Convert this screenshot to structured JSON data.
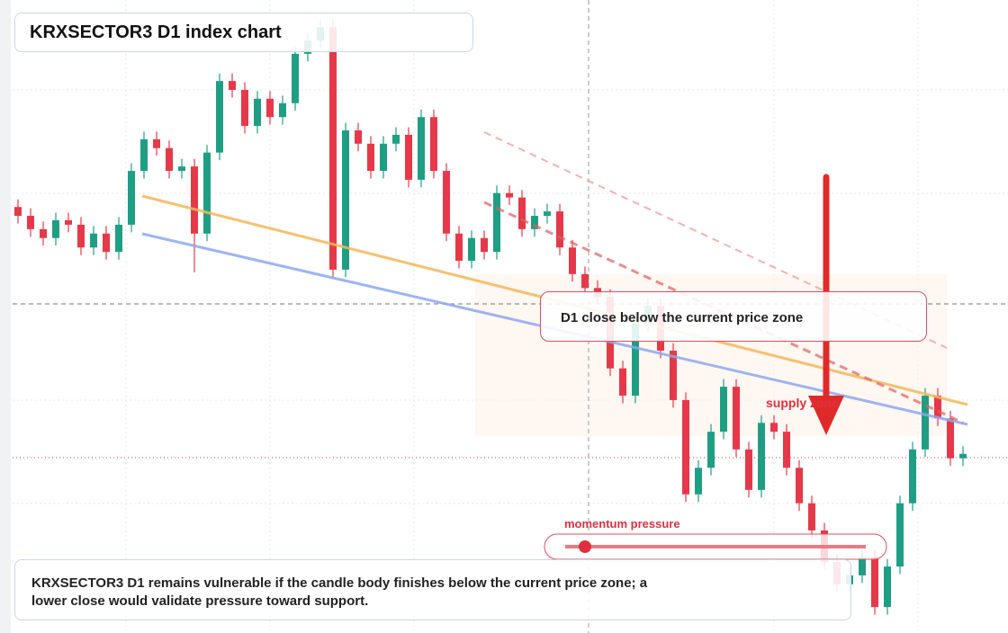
{
  "chart_data": {
    "type": "candlestick",
    "title": "KRXSECTOR3 D1 index chart",
    "callout": "D1 close below the current price zone",
    "zone_label": "supply zone",
    "momentum_label": "momentum pressure",
    "note": "KRXSECTOR3 D1 remains vulnerable if the candle body finishes below the current price zone; a lower close would validate pressure toward support.",
    "ylim": [
      0,
      100
    ],
    "up_color": "#1f9e84",
    "down_color": "#e5394a",
    "open": [
      67.3,
      65.9,
      63.8,
      62.4,
      65.2,
      64.5,
      60.9,
      63.1,
      60.2,
      64.5,
      73.0,
      78.0,
      76.6,
      73.0,
      73.7,
      63.1,
      75.9,
      87.2,
      85.8,
      80.1,
      84.4,
      81.5,
      83.7,
      91.5,
      93.6,
      95.7,
      57.4,
      79.4,
      77.3,
      73.0,
      77.3,
      78.7,
      71.6,
      81.5,
      73.0,
      63.1,
      58.8,
      62.4,
      60.2,
      69.5,
      68.8,
      63.8,
      65.9,
      66.6,
      60.9,
      56.7,
      54.5,
      53.1,
      41.8,
      37.5,
      48.9,
      51.7,
      44.6,
      36.8,
      21.9,
      26.1,
      31.8,
      38.9,
      29.0,
      22.6,
      33.2,
      31.8,
      26.1,
      20.5,
      16.2,
      11.2,
      7.7,
      9.1,
      11.9,
      4.1,
      10.5,
      20.5,
      29.0,
      37.5,
      33.9,
      27.6
    ],
    "high": [
      68.5,
      67.1,
      65.0,
      66.4,
      66.4,
      65.7,
      64.3,
      64.3,
      65.7,
      74.2,
      79.2,
      79.2,
      77.8,
      74.9,
      74.9,
      77.1,
      88.4,
      88.4,
      87.0,
      85.6,
      85.6,
      84.9,
      92.7,
      94.8,
      96.9,
      96.9,
      80.6,
      80.6,
      78.5,
      78.5,
      79.9,
      79.9,
      82.7,
      82.7,
      74.2,
      64.3,
      63.6,
      63.6,
      70.7,
      70.7,
      70.0,
      67.1,
      67.8,
      67.8,
      62.1,
      57.9,
      55.7,
      54.3,
      43.0,
      50.1,
      52.9,
      52.9,
      45.8,
      38.0,
      27.3,
      33.0,
      40.1,
      40.1,
      30.2,
      34.4,
      34.4,
      33.0,
      27.3,
      21.7,
      17.4,
      12.4,
      10.3,
      13.1,
      13.1,
      11.7,
      21.7,
      30.2,
      38.7,
      38.7,
      35.1,
      29.5
    ],
    "low": [
      64.7,
      62.6,
      61.2,
      61.2,
      63.3,
      59.7,
      59.7,
      59.0,
      59.0,
      63.3,
      71.8,
      75.4,
      71.8,
      71.8,
      57.0,
      61.9,
      74.7,
      84.6,
      78.9,
      78.9,
      80.3,
      80.3,
      82.5,
      90.3,
      92.4,
      56.2,
      56.2,
      76.1,
      71.8,
      71.8,
      76.1,
      70.4,
      70.4,
      71.8,
      61.9,
      57.6,
      57.6,
      59.0,
      59.0,
      67.6,
      62.6,
      62.6,
      64.7,
      59.7,
      55.5,
      53.3,
      51.9,
      40.6,
      36.3,
      36.3,
      47.7,
      43.4,
      35.6,
      20.7,
      20.7,
      24.9,
      30.6,
      27.8,
      21.4,
      21.4,
      30.6,
      24.9,
      19.3,
      15.0,
      10.0,
      6.5,
      6.5,
      7.9,
      2.9,
      2.9,
      9.3,
      19.3,
      27.8,
      32.7,
      26.4,
      26.4
    ],
    "close": [
      65.9,
      63.8,
      62.4,
      65.2,
      64.5,
      60.9,
      63.1,
      60.2,
      64.5,
      73.0,
      78.0,
      76.6,
      73.0,
      73.7,
      63.1,
      75.9,
      87.2,
      85.8,
      80.1,
      84.4,
      81.5,
      83.7,
      91.5,
      93.6,
      95.7,
      57.4,
      79.4,
      77.3,
      73.0,
      77.3,
      78.7,
      71.6,
      81.5,
      73.0,
      63.1,
      58.8,
      62.4,
      60.2,
      69.5,
      68.8,
      63.8,
      65.9,
      66.6,
      60.9,
      56.7,
      54.5,
      53.1,
      41.8,
      37.5,
      48.9,
      51.7,
      44.6,
      36.8,
      21.9,
      26.1,
      31.8,
      38.9,
      29.0,
      22.6,
      33.2,
      31.8,
      26.1,
      20.5,
      16.2,
      11.2,
      7.7,
      9.1,
      11.9,
      4.1,
      10.5,
      20.5,
      29.0,
      37.5,
      33.9,
      27.6,
      28.3
    ]
  }
}
